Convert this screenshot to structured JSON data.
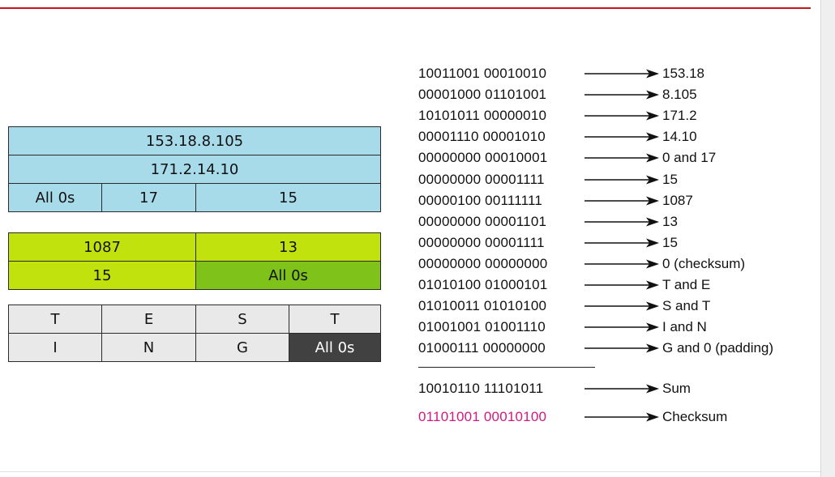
{
  "datagram": {
    "ip_header": {
      "row1": "153.18.8.105",
      "row2": "171.2.14.10",
      "row3": [
        "All 0s",
        "17",
        "15"
      ]
    },
    "udp_header": {
      "row1": [
        "1087",
        "13"
      ],
      "row2": [
        "15",
        "All 0s"
      ]
    },
    "data": {
      "row1": [
        "T",
        "E",
        "S",
        "T"
      ],
      "row2": [
        "I",
        "N",
        "G",
        "All 0s"
      ]
    }
  },
  "calculation": {
    "lines": [
      {
        "bits": "10011001 00010010",
        "value": "153.18"
      },
      {
        "bits": "00001000 01101001",
        "value": "8.105"
      },
      {
        "bits": "10101011 00000010",
        "value": "171.2"
      },
      {
        "bits": "00001110 00001010",
        "value": "14.10"
      },
      {
        "bits": "00000000 00010001",
        "value": "0 and 17"
      },
      {
        "bits": "00000000 00001111",
        "value": "15"
      },
      {
        "bits": "00000100 00111111",
        "value": "1087"
      },
      {
        "bits": "00000000 00001101",
        "value": "13"
      },
      {
        "bits": "00000000 00001111",
        "value": "15"
      },
      {
        "bits": "00000000 00000000",
        "value": "0 (checksum)"
      },
      {
        "bits": "01010100 01000101",
        "value": "T and E"
      },
      {
        "bits": "01010011 01010100",
        "value": "S and T"
      },
      {
        "bits": "01001001 01001110",
        "value": "I and N"
      },
      {
        "bits": "01000111 00000000",
        "value": "G and 0 (padding)"
      }
    ],
    "sum": {
      "bits": "10010110 11101011",
      "value": "Sum"
    },
    "checksum": {
      "bits": "01101001 00010100",
      "value": "Checksum"
    }
  },
  "colors": {
    "ip_header": "#a7dbe9",
    "udp_header": "#c1e20d",
    "udp_checksum": "#7fc21a",
    "data": "#e9e9e9",
    "padding": "#414141",
    "checksum_text": "#d1197f",
    "top_rule": "#c8161d"
  }
}
